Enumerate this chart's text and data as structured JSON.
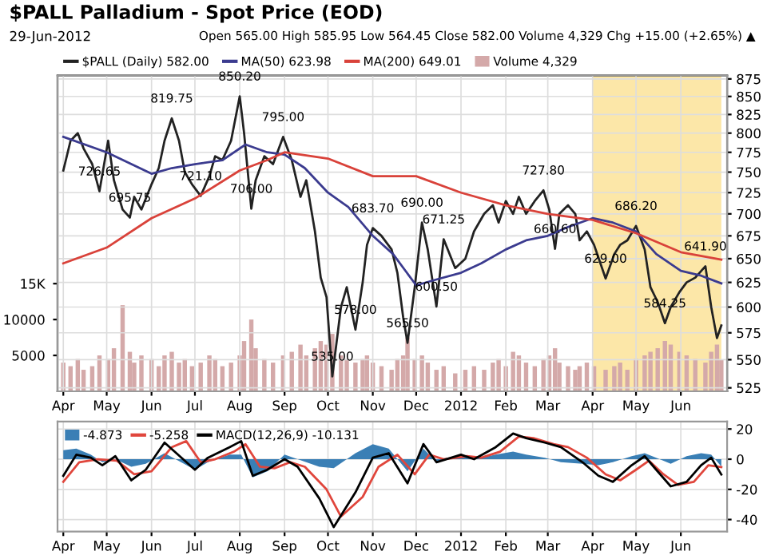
{
  "chart_data": [
    {
      "type": "line",
      "title": "$PALL Palladium - Spot Price (EOD)",
      "subtitle": "29-Jun-2012",
      "annotations": [
        "Open 565.00 High 585.95 Low 564.45 Close 582.00 Volume 4,329 Chg +15.00 (+2.65%) ▲",
        {
          "text": "726.65",
          "x": "2011-04-26",
          "y": 726.65
        },
        {
          "text": "695.75",
          "x": "2011-05-17",
          "y": 695.75
        },
        {
          "text": "819.75",
          "x": "2011-06-15",
          "y": 819.75
        },
        {
          "text": "721.10",
          "x": "2011-07-05",
          "y": 721.1
        },
        {
          "text": "850.20",
          "x": "2011-08-01",
          "y": 850.2
        },
        {
          "text": "706.00",
          "x": "2011-08-09",
          "y": 706.0
        },
        {
          "text": "795.00",
          "x": "2011-08-31",
          "y": 795.0
        },
        {
          "text": "535.00",
          "x": "2011-10-04",
          "y": 535.0
        },
        {
          "text": "578.00",
          "x": "2011-10-20",
          "y": 578.0
        },
        {
          "text": "683.70",
          "x": "2011-11-01",
          "y": 683.7
        },
        {
          "text": "565.50",
          "x": "2011-11-25",
          "y": 565.5
        },
        {
          "text": "690.00",
          "x": "2011-12-05",
          "y": 690.0
        },
        {
          "text": "600.50",
          "x": "2011-12-15",
          "y": 600.5
        },
        {
          "text": "671.25",
          "x": "2011-12-20",
          "y": 671.25
        },
        {
          "text": "727.80",
          "x": "2012-02-27",
          "y": 727.8
        },
        {
          "text": "660.60",
          "x": "2012-03-06",
          "y": 660.6
        },
        {
          "text": "629.00",
          "x": "2012-04-10",
          "y": 629.0
        },
        {
          "text": "686.20",
          "x": "2012-05-01",
          "y": 686.2
        },
        {
          "text": "584.25",
          "x": "2012-05-21",
          "y": 584.25
        },
        {
          "text": "641.90",
          "x": "2012-06-18",
          "y": 641.9
        }
      ],
      "x": [
        "2011-04-01",
        "2011-04-06",
        "2011-04-11",
        "2011-04-15",
        "2011-04-21",
        "2011-04-26",
        "2011-05-02",
        "2011-05-06",
        "2011-05-12",
        "2011-05-17",
        "2011-05-20",
        "2011-05-25",
        "2011-06-01",
        "2011-06-06",
        "2011-06-10",
        "2011-06-15",
        "2011-06-20",
        "2011-06-24",
        "2011-06-29",
        "2011-07-05",
        "2011-07-11",
        "2011-07-15",
        "2011-07-20",
        "2011-07-26",
        "2011-08-01",
        "2011-08-04",
        "2011-08-09",
        "2011-08-12",
        "2011-08-18",
        "2011-08-24",
        "2011-08-31",
        "2011-09-06",
        "2011-09-12",
        "2011-09-16",
        "2011-09-22",
        "2011-09-26",
        "2011-09-30",
        "2011-10-04",
        "2011-10-10",
        "2011-10-14",
        "2011-10-20",
        "2011-10-25",
        "2011-10-28",
        "2011-11-01",
        "2011-11-07",
        "2011-11-14",
        "2011-11-18",
        "2011-11-22",
        "2011-11-25",
        "2011-11-30",
        "2011-12-05",
        "2011-12-09",
        "2011-12-15",
        "2011-12-20",
        "2011-12-28",
        "2012-01-04",
        "2012-01-10",
        "2012-01-17",
        "2012-01-23",
        "2012-01-27",
        "2012-02-01",
        "2012-02-06",
        "2012-02-10",
        "2012-02-15",
        "2012-02-21",
        "2012-02-27",
        "2012-03-02",
        "2012-03-06",
        "2012-03-09",
        "2012-03-15",
        "2012-03-20",
        "2012-03-23",
        "2012-03-28",
        "2012-04-02",
        "2012-04-10",
        "2012-04-16",
        "2012-04-20",
        "2012-04-25",
        "2012-05-01",
        "2012-05-07",
        "2012-05-11",
        "2012-05-16",
        "2012-05-21",
        "2012-05-25",
        "2012-05-31",
        "2012-06-05",
        "2012-06-11",
        "2012-06-18",
        "2012-06-22",
        "2012-06-26",
        "2012-06-29"
      ],
      "series": [
        {
          "name": "$PALL (Daily) 582.00",
          "color": "#222222",
          "values": [
            752,
            790,
            800,
            780,
            760,
            726.65,
            790,
            740,
            705,
            695.75,
            720,
            705,
            735,
            755,
            790,
            819.75,
            790,
            750,
            735,
            721.1,
            745,
            770,
            765,
            790,
            850.2,
            800,
            706.0,
            740,
            770,
            760,
            795.0,
            765,
            720,
            740,
            680,
            630,
            610,
            535.0,
            600,
            620,
            578.0,
            625,
            665,
            683.7,
            675,
            660,
            635,
            590,
            565.5,
            620,
            690.0,
            660,
            600.5,
            671.25,
            640,
            650,
            680,
            700,
            710,
            690,
            715,
            700,
            720,
            700,
            715,
            727.8,
            705,
            660.6,
            700,
            710,
            700,
            670,
            680,
            665,
            629.0,
            655,
            665,
            670,
            686.2,
            660,
            620,
            605,
            584.25,
            600,
            615,
            625,
            630,
            641.9,
            600,
            570,
            582
          ]
        },
        {
          "name": "MA(50) 623.98",
          "color": "#3b3b8f",
          "x": [
            "2011-04-01",
            "2011-05-01",
            "2011-06-01",
            "2011-06-15",
            "2011-07-01",
            "2011-07-20",
            "2011-08-05",
            "2011-08-20",
            "2011-09-01",
            "2011-09-15",
            "2011-10-01",
            "2011-10-15",
            "2011-11-01",
            "2011-11-15",
            "2011-12-01",
            "2011-12-15",
            "2012-01-01",
            "2012-01-15",
            "2012-02-01",
            "2012-02-15",
            "2012-03-01",
            "2012-03-15",
            "2012-04-01",
            "2012-04-15",
            "2012-05-01",
            "2012-05-15",
            "2012-06-01",
            "2012-06-15",
            "2012-06-29"
          ],
          "values": [
            795,
            775,
            748,
            755,
            760,
            765,
            785,
            775,
            772,
            755,
            725,
            708,
            675,
            655,
            622,
            628,
            635,
            645,
            660,
            670,
            675,
            685,
            695,
            690,
            680,
            655,
            637,
            632,
            623.98
          ]
        },
        {
          "name": "MA(200) 649.01",
          "color": "#d9423a",
          "x": [
            "2011-04-01",
            "2011-05-01",
            "2011-06-01",
            "2011-07-01",
            "2011-08-01",
            "2011-08-20",
            "2011-09-01",
            "2011-10-01",
            "2011-11-01",
            "2011-12-01",
            "2012-01-01",
            "2012-02-01",
            "2012-03-01",
            "2012-04-01",
            "2012-05-01",
            "2012-06-01",
            "2012-06-29"
          ],
          "values": [
            645,
            662,
            695,
            718,
            752,
            765,
            775,
            767,
            745,
            745,
            725,
            710,
            700,
            693,
            678,
            657,
            649.01
          ]
        },
        {
          "name": "Volume 4,329",
          "type": "bar",
          "axis": "y2",
          "color": "#d4a9a9",
          "values": [
            4000,
            3500,
            4500,
            3000,
            3500,
            5000,
            4500,
            6000,
            12000,
            5500,
            4000,
            5000,
            4500,
            3500,
            5000,
            5500,
            4000,
            4500,
            3500,
            4000,
            5000,
            4500,
            3500,
            4000,
            5000,
            7000,
            10000,
            6000,
            4500,
            4000,
            5000,
            5500,
            6500,
            5000,
            6000,
            7000,
            6500,
            8000,
            5000,
            4500,
            4000,
            4500,
            5000,
            4000,
            3500,
            3000,
            4500,
            5000,
            7500,
            4500,
            5000,
            4000,
            3000,
            3500,
            2500,
            3000,
            3500,
            3000,
            4000,
            4500,
            3500,
            5500,
            5000,
            4000,
            3500,
            4500,
            5000,
            6000,
            4000,
            3500,
            3000,
            3500,
            4000,
            3500,
            3000,
            3500,
            4000,
            3000,
            4500,
            5000,
            5500,
            6000,
            7000,
            6500,
            5500,
            5000,
            4500,
            4000,
            5500,
            6500,
            4329
          ]
        }
      ],
      "log": true,
      "ylim": [
        522,
        880
      ],
      "yticks": [
        525,
        550,
        575,
        600,
        625,
        650,
        675,
        700,
        725,
        750,
        775,
        800,
        825,
        850,
        875
      ],
      "y2lim": [
        0,
        44000
      ],
      "y2ticks": [
        5000,
        10000,
        {
          "value": 15000,
          "label": "15K"
        }
      ],
      "xlim": [
        "2011-03-28",
        "2012-07-03"
      ],
      "xticks": [
        {
          "value": "2011-04-01",
          "label": "Apr"
        },
        {
          "value": "2011-05-01",
          "label": "May"
        },
        {
          "value": "2011-06-01",
          "label": "Jun"
        },
        {
          "value": "2011-07-01",
          "label": "Jul"
        },
        {
          "value": "2011-08-01",
          "label": "Aug"
        },
        {
          "value": "2011-09-01",
          "label": "Sep"
        },
        {
          "value": "2011-10-01",
          "label": "Oct"
        },
        {
          "value": "2011-11-01",
          "label": "Nov"
        },
        {
          "value": "2011-12-01",
          "label": "Dec"
        },
        {
          "value": "2012-01-01",
          "label": "2012"
        },
        {
          "value": "2012-02-01",
          "label": "Feb"
        },
        {
          "value": "2012-03-01",
          "label": "Mar"
        },
        {
          "value": "2012-04-01",
          "label": "Apr"
        },
        {
          "value": "2012-05-01",
          "label": "May"
        },
        {
          "value": "2012-06-01",
          "label": "Jun"
        }
      ],
      "bands": [
        {
          "axis": "x",
          "from": "2012-04-01",
          "to": "2012-06-29",
          "color": "#fce7a8"
        }
      ],
      "grid": true,
      "legend": "top left"
    },
    {
      "type": "line",
      "x": [
        "2011-04-01",
        "2011-04-10",
        "2011-04-20",
        "2011-04-28",
        "2011-05-07",
        "2011-05-18",
        "2011-05-28",
        "2011-06-10",
        "2011-07-01",
        "2011-07-10",
        "2011-07-25",
        "2011-08-02",
        "2011-08-10",
        "2011-08-20",
        "2011-09-01",
        "2011-09-10",
        "2011-09-25",
        "2011-10-05",
        "2011-10-20",
        "2011-11-01",
        "2011-11-12",
        "2011-11-25",
        "2011-12-06",
        "2011-12-15",
        "2012-01-01",
        "2012-01-10",
        "2012-01-25",
        "2012-02-06",
        "2012-02-15",
        "2012-02-28",
        "2012-03-10",
        "2012-03-25",
        "2012-04-05",
        "2012-04-15",
        "2012-04-28",
        "2012-05-07",
        "2012-05-15",
        "2012-05-25",
        "2012-06-05",
        "2012-06-15",
        "2012-06-22",
        "2012-06-29"
      ],
      "series": [
        {
          "name": "-4.873",
          "type": "area",
          "color": "#3a7fb5",
          "values": [
            6,
            7,
            3,
            -2,
            0,
            -5,
            -3,
            4,
            -7,
            -2,
            3,
            3,
            -12,
            -8,
            3,
            0,
            -5,
            -6,
            4,
            10,
            7,
            -8,
            7,
            -2,
            2,
            0,
            3,
            5,
            3,
            1,
            -2,
            -3,
            -4,
            -2,
            2,
            4,
            1,
            -3,
            2,
            4,
            3,
            -4.873
          ]
        },
        {
          "name": "-5.258",
          "color": "#e0463c",
          "x": [
            "2011-04-01",
            "2011-04-12",
            "2011-04-25",
            "2011-05-08",
            "2011-05-20",
            "2011-06-01",
            "2011-06-15",
            "2011-06-25",
            "2011-07-05",
            "2011-07-15",
            "2011-07-28",
            "2011-08-05",
            "2011-08-15",
            "2011-08-25",
            "2011-09-05",
            "2011-09-15",
            "2011-09-30",
            "2011-10-10",
            "2011-10-25",
            "2011-11-05",
            "2011-11-18",
            "2011-11-30",
            "2011-12-10",
            "2011-12-20",
            "2012-01-05",
            "2012-01-15",
            "2012-01-28",
            "2012-02-10",
            "2012-02-20",
            "2012-03-05",
            "2012-03-15",
            "2012-03-28",
            "2012-04-10",
            "2012-04-20",
            "2012-05-01",
            "2012-05-10",
            "2012-05-20",
            "2012-05-30",
            "2012-06-10",
            "2012-06-20",
            "2012-06-29"
          ],
          "values": [
            -15,
            -2,
            0,
            -1,
            -10,
            -8,
            8,
            12,
            -2,
            0,
            5,
            10,
            -5,
            -6,
            -2,
            -5,
            -20,
            -38,
            -25,
            -5,
            3,
            -10,
            3,
            0,
            2,
            1,
            5,
            15,
            14,
            10,
            8,
            1,
            -10,
            -14,
            -7,
            -1,
            -10,
            -17,
            -15,
            -4,
            -5.258
          ]
        },
        {
          "name": "MACD(12,26,9) -10.131",
          "color": "#000000",
          "values": [
            -11,
            3,
            1,
            -4,
            2,
            -14,
            -7,
            11,
            -7,
            1,
            8,
            12,
            -11,
            -7,
            0,
            -5,
            -26,
            -45,
            -22,
            1,
            4,
            -16,
            10,
            -2,
            3,
            0,
            8,
            17,
            14,
            11,
            8,
            -2,
            -11,
            -15,
            -4,
            2,
            -7,
            -18,
            -15,
            -4,
            1,
            -10.131
          ]
        }
      ],
      "ylim": [
        -48,
        25
      ],
      "yticks": [
        -40,
        -20,
        0,
        20
      ],
      "xlim": [
        "2011-03-28",
        "2012-07-03"
      ],
      "xticks": [
        {
          "value": "2011-04-01",
          "label": "Apr"
        },
        {
          "value": "2011-05-01",
          "label": "May"
        },
        {
          "value": "2011-06-01",
          "label": "Jun"
        },
        {
          "value": "2011-07-01",
          "label": "Jul"
        },
        {
          "value": "2011-08-01",
          "label": "Aug"
        },
        {
          "value": "2011-09-01",
          "label": "Sep"
        },
        {
          "value": "2011-10-01",
          "label": "Oct"
        },
        {
          "value": "2011-11-01",
          "label": "Nov"
        },
        {
          "value": "2011-12-01",
          "label": "Dec"
        },
        {
          "value": "2012-01-01",
          "label": "2012"
        },
        {
          "value": "2012-02-01",
          "label": "Feb"
        },
        {
          "value": "2012-03-01",
          "label": "Mar"
        },
        {
          "value": "2012-04-01",
          "label": "Apr"
        },
        {
          "value": "2012-05-01",
          "label": "May"
        },
        {
          "value": "2012-06-01",
          "label": "Jun"
        }
      ],
      "grid": true,
      "legend": "top left"
    }
  ]
}
